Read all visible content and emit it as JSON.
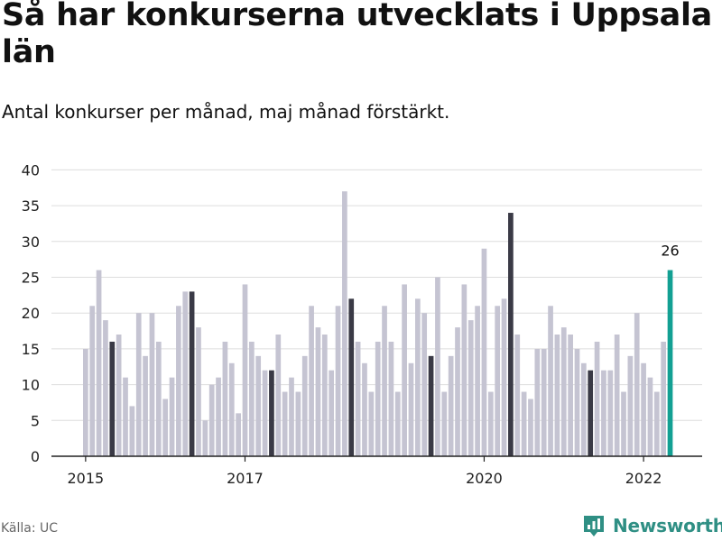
{
  "header": {
    "title": "Så har konkurserna utvecklats i Uppsala län",
    "subtitle": "Antal konkurser per månad, maj månad förstärkt."
  },
  "footer": {
    "source": "Källa: UC",
    "brand": "Newsworthy"
  },
  "colors": {
    "bar_default": "#c5c4d2",
    "bar_highlight": "#3a3a46",
    "bar_latest": "#13a093",
    "grid": "#dddddd",
    "axis": "#222222",
    "brand": "#2f8f84"
  },
  "chart_data": {
    "type": "bar",
    "title": "Så har konkurserna utvecklats i Uppsala län",
    "subtitle": "Antal konkurser per månad, maj månad förstärkt.",
    "xlabel": "",
    "ylabel": "",
    "ylim": [
      0,
      40
    ],
    "yticks": [
      0,
      5,
      10,
      15,
      20,
      25,
      30,
      35,
      40
    ],
    "xticks": [
      {
        "label": "2015",
        "index": 0
      },
      {
        "label": "2017",
        "index": 24
      },
      {
        "label": "2020",
        "index": 60
      },
      {
        "label": "2022",
        "index": 84
      }
    ],
    "grid": true,
    "start": "2015-01",
    "end": "2022-05",
    "highlight_month": "maj",
    "categories": [
      "2015-01",
      "2015-02",
      "2015-03",
      "2015-04",
      "2015-05",
      "2015-06",
      "2015-07",
      "2015-08",
      "2015-09",
      "2015-10",
      "2015-11",
      "2015-12",
      "2016-01",
      "2016-02",
      "2016-03",
      "2016-04",
      "2016-05",
      "2016-06",
      "2016-07",
      "2016-08",
      "2016-09",
      "2016-10",
      "2016-11",
      "2016-12",
      "2017-01",
      "2017-02",
      "2017-03",
      "2017-04",
      "2017-05",
      "2017-06",
      "2017-07",
      "2017-08",
      "2017-09",
      "2017-10",
      "2017-11",
      "2017-12",
      "2018-01",
      "2018-02",
      "2018-03",
      "2018-04",
      "2018-05",
      "2018-06",
      "2018-07",
      "2018-08",
      "2018-09",
      "2018-10",
      "2018-11",
      "2018-12",
      "2019-01",
      "2019-02",
      "2019-03",
      "2019-04",
      "2019-05",
      "2019-06",
      "2019-07",
      "2019-08",
      "2019-09",
      "2019-10",
      "2019-11",
      "2019-12",
      "2020-01",
      "2020-02",
      "2020-03",
      "2020-04",
      "2020-05",
      "2020-06",
      "2020-07",
      "2020-08",
      "2020-09",
      "2020-10",
      "2020-11",
      "2020-12",
      "2021-01",
      "2021-02",
      "2021-03",
      "2021-04",
      "2021-05",
      "2021-06",
      "2021-07",
      "2021-08",
      "2021-09",
      "2021-10",
      "2021-11",
      "2021-12",
      "2022-01",
      "2022-02",
      "2022-03",
      "2022-04",
      "2022-05"
    ],
    "values": [
      15,
      21,
      26,
      19,
      16,
      17,
      11,
      7,
      20,
      14,
      20,
      16,
      8,
      11,
      21,
      23,
      23,
      18,
      5,
      10,
      11,
      16,
      13,
      6,
      24,
      16,
      14,
      12,
      12,
      17,
      9,
      11,
      9,
      14,
      21,
      18,
      17,
      12,
      21,
      37,
      22,
      16,
      13,
      9,
      16,
      21,
      16,
      9,
      24,
      13,
      22,
      20,
      14,
      25,
      9,
      14,
      18,
      24,
      19,
      21,
      29,
      9,
      21,
      22,
      34,
      17,
      9,
      8,
      15,
      15,
      21,
      17,
      18,
      17,
      15,
      13,
      12,
      16,
      12,
      12,
      17,
      9,
      14,
      20,
      13,
      11,
      9,
      16,
      26
    ],
    "latest_label": "26"
  }
}
